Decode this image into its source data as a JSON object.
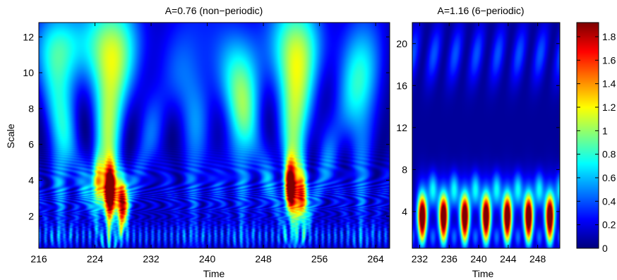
{
  "colormap": "jet",
  "colorbar": {
    "ticks": [
      "0",
      "0.2",
      "0.4",
      "0.6",
      "0.8",
      "1",
      "1.2",
      "1.4",
      "1.6",
      "1.8"
    ],
    "tick_values": [
      0,
      0.2,
      0.4,
      0.6,
      0.8,
      1.0,
      1.2,
      1.4,
      1.6,
      1.8
    ],
    "range": [
      0,
      1.92
    ]
  },
  "chart_data": [
    {
      "type": "heatmap",
      "title": "A=0.76 (non−periodic)",
      "xlabel": "Time",
      "ylabel": "Scale",
      "xlim": [
        216,
        266
      ],
      "ylim": [
        0.2,
        12.8
      ],
      "xticks": [
        "216",
        "224",
        "232",
        "240",
        "248",
        "256",
        "264"
      ],
      "xtick_values": [
        216,
        224,
        232,
        240,
        248,
        256,
        264
      ],
      "yticks": [
        "2",
        "4",
        "6",
        "8",
        "10",
        "12"
      ],
      "ytick_values": [
        2,
        4,
        6,
        8,
        10,
        12
      ],
      "value_range": [
        0,
        1.92
      ],
      "hotspots": [
        {
          "time": 224.4,
          "scale": 3.8,
          "value": 1.2
        },
        {
          "time": 226.1,
          "scale": 3.4,
          "value": 1.8
        },
        {
          "time": 227.8,
          "scale": 2.8,
          "value": 1.8
        },
        {
          "time": 251.8,
          "scale": 3.6,
          "value": 1.8
        },
        {
          "time": 253.6,
          "scale": 3.0,
          "value": 1.4
        }
      ]
    },
    {
      "type": "heatmap",
      "title": "A=1.16 (6−periodic)",
      "xlabel": "Time",
      "ylabel": "",
      "xlim": [
        231,
        251
      ],
      "ylim": [
        0.5,
        22
      ],
      "xticks": [
        "232",
        "236",
        "240",
        "244",
        "248"
      ],
      "xtick_values": [
        232,
        236,
        240,
        244,
        248
      ],
      "yticks": [
        "4",
        "8",
        "12",
        "16",
        "20"
      ],
      "ytick_values": [
        4,
        8,
        12,
        16,
        20
      ],
      "value_range": [
        0,
        1.92
      ],
      "period": 2.9,
      "hotspots": [
        {
          "time": 232.3,
          "scale": 3.5,
          "value": 1.8
        },
        {
          "time": 235.2,
          "scale": 3.5,
          "value": 1.8
        },
        {
          "time": 238.1,
          "scale": 3.5,
          "value": 1.8
        },
        {
          "time": 241.0,
          "scale": 3.5,
          "value": 1.8
        },
        {
          "time": 243.9,
          "scale": 3.5,
          "value": 1.8
        },
        {
          "time": 246.8,
          "scale": 3.5,
          "value": 1.8
        },
        {
          "time": 249.7,
          "scale": 3.5,
          "value": 1.8
        }
      ]
    }
  ]
}
